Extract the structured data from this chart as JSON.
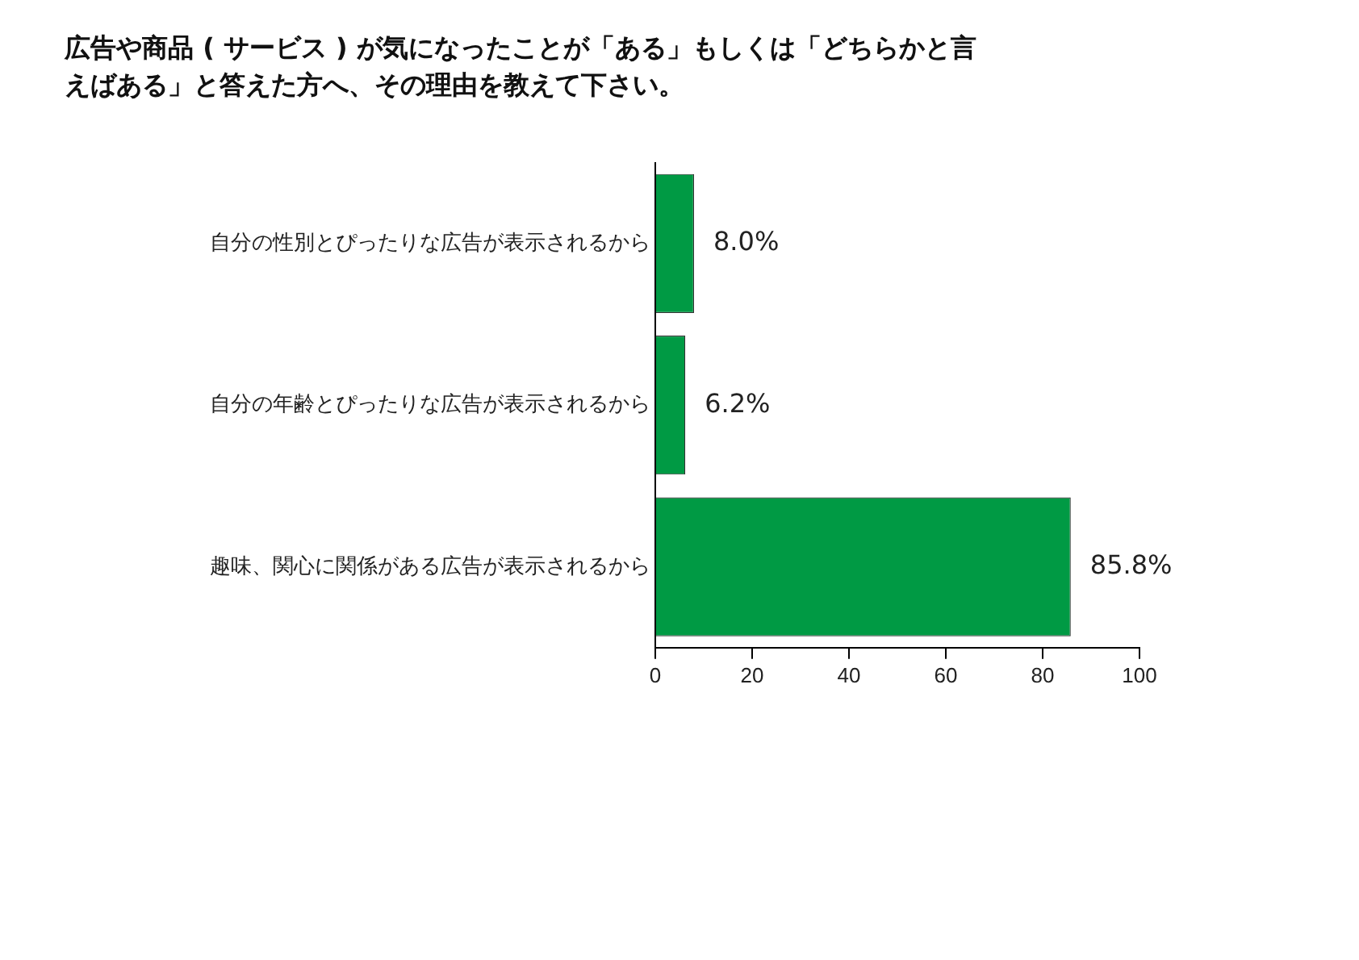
{
  "chart_data": {
    "type": "bar",
    "orientation": "horizontal",
    "title": "広告や商品 ( サービス ) が気になったことが「ある」もしくは「どちらかと言えばある」と答えた方へ、その理由を教えて下さい。",
    "categories": [
      "自分の性別とぴったりな広告が表示されるから",
      "自分の年齢とぴったりな広告が表示されるから",
      "趣味、関心に関係がある広告が表示されるから"
    ],
    "values": [
      8.0,
      6.2,
      85.8
    ],
    "value_labels": [
      "8.0%",
      "6.2%",
      "85.8%"
    ],
    "color": "#009a44",
    "xlim": [
      0,
      100
    ],
    "xticks": [
      0,
      20,
      40,
      60,
      80,
      100
    ],
    "grid": false,
    "legend": false
  }
}
